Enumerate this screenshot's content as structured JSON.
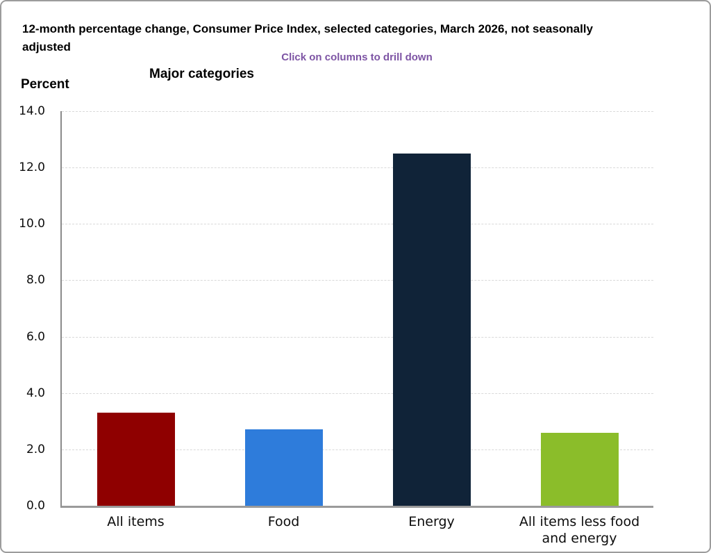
{
  "header": {
    "title": "12-month percentage change, Consumer Price Index, selected categories, March 2026, not seasonally adjusted",
    "drilldown_note": "Click on columns to drill down",
    "drilldown_note_color": "#7d54a4"
  },
  "chart_data": {
    "type": "bar",
    "title": "Major categories",
    "ylabel": "Percent",
    "xlabel": "",
    "categories": [
      "All items",
      "Food",
      "Energy",
      "All items less food and energy"
    ],
    "values": [
      3.3,
      2.7,
      12.5,
      2.6
    ],
    "bar_colors": [
      "#8f0000",
      "#2e7cdb",
      "#102338",
      "#8bbd2a"
    ],
    "ylim": [
      0,
      14
    ],
    "ytick_step": 2,
    "ytick_decimals": 1,
    "grid": "horizontal dashed",
    "legend_position": "none",
    "bars_clickable": true
  }
}
